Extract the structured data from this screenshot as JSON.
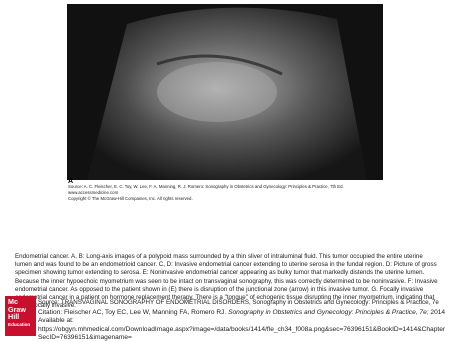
{
  "figure": {
    "panel_label": "A",
    "source": "Source: A. C. Fleischer, E. C. Toy, W. Lee, F. A. Manning, R. J. Romero: Sonography in Obstetrics and Gynecology: Principles & Practice, 7th Ed.",
    "url": "www.accessmedicine.com",
    "copyright": "Copyright © The McGraw-Hill Companies, Inc. All rights reserved."
  },
  "caption": "Endometrial cancer. A, B: Long-axis images of a polypoid mass surrounded by a thin sliver of intraluminal fluid. This tumor occupied the entire uterine lumen and was found to be an endometrioid cancer. C, D: Invasive endometrial cancer extending to uterine serosa in the fundal region. D: Picture of gross specimen showing tumor extending to serosa. E: Noninvasive endometrial cancer appearing as bulky tumor that markedly distends the uterine lumen. Because the inner hypoechoic myometrium was seen to be intact on transvaginal sonography, this was correctly determined to be noninvasive. F: Invasive endometrial cancer. As opposed to the patient shown in (E) there is disruption of the junctional zone (arrow) in this invasive tumor. G. Focally invasive endometrial cancer in a patient on hormone replacement therapy. There is a \"tongue\" of echogenic tissue disrupting the inner myometrium, indicating that this is focally invasive.",
  "source_line": "Source: TRANSVAGINAL SONOGRAPHY OF ENDOMETRIAL DISORDERS, Sonography in Obstetrics and Gynecology: Principles & Practice, 7e",
  "logo": [
    "Mc",
    "Graw",
    "Hill",
    "Education"
  ],
  "citation": {
    "prefix": "Citation: Fleischer AC, Toy EC, Lee W, Manning FA, Romero RJ.",
    "book": "Sonography in Obstetrics and Gynecology: Principles & Practice, 7e;",
    "year": "2014",
    "available": "Available at:",
    "link": "https://obgyn.mhmedical.com/DownloadImage.aspx?image=/data/books/1414/fle_ch34_f008a.png&sec=76396151&BookID=1414&ChapterSecID=76396151&imagename="
  }
}
